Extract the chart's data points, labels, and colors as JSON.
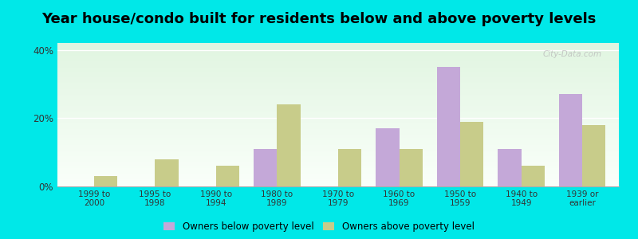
{
  "title": "Year house/condo built for residents below and above poverty levels",
  "categories": [
    "1999 to\n2000",
    "1995 to\n1998",
    "1990 to\n1994",
    "1980 to\n1989",
    "1970 to\n1979",
    "1960 to\n1969",
    "1950 to\n1959",
    "1940 to\n1949",
    "1939 or\nearlier"
  ],
  "below_poverty": [
    0,
    0,
    0,
    11,
    0,
    17,
    35,
    11,
    27
  ],
  "above_poverty": [
    3,
    8,
    6,
    24,
    11,
    11,
    19,
    6,
    18
  ],
  "below_color": "#c4a8d8",
  "above_color": "#c8cc8a",
  "ylim": [
    0,
    42
  ],
  "yticks": [
    0,
    20,
    40
  ],
  "ytick_labels": [
    "0%",
    "20%",
    "40%"
  ],
  "outer_bg": "#00e8e8",
  "legend_below": "Owners below poverty level",
  "legend_above": "Owners above poverty level",
  "title_fontsize": 13,
  "bar_width": 0.38,
  "watermark": "City-Data.com"
}
